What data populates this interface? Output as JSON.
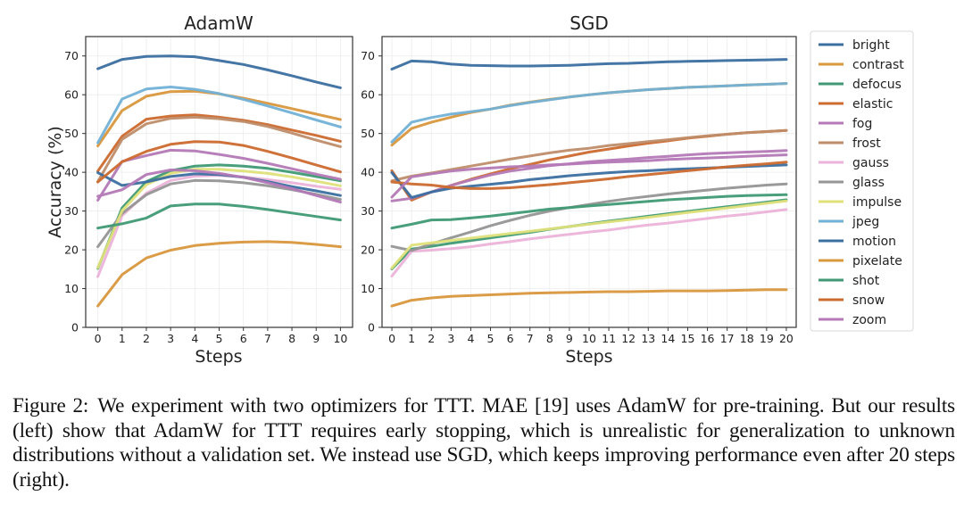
{
  "figure": {
    "caption_label": "Figure 2:",
    "caption_text": "We experiment with two optimizers for TTT. MAE [19] uses AdamW for pre-training. But our results (left) show that AdamW for TTT requires early stopping, which is unrealistic for generalization to unknown distributions without a validation set. We instead use SGD, which keeps improving performance even after 20 steps (right)."
  },
  "legend": {
    "placement": "right",
    "entries": [
      {
        "name": "bright",
        "color": "#3b6fa0"
      },
      {
        "name": "contrast",
        "color": "#d9973e"
      },
      {
        "name": "defocus",
        "color": "#3f9a74"
      },
      {
        "name": "elastic",
        "color": "#cc6a2f"
      },
      {
        "name": "fog",
        "color": "#b479b6"
      },
      {
        "name": "frost",
        "color": "#bf8d6a"
      },
      {
        "name": "gauss",
        "color": "#ebb3d9"
      },
      {
        "name": "glass",
        "color": "#959595"
      },
      {
        "name": "impulse",
        "color": "#dfe07a"
      },
      {
        "name": "jpeg",
        "color": "#72b1d6"
      },
      {
        "name": "motion",
        "color": "#3b6fa0"
      },
      {
        "name": "pixelate",
        "color": "#d9973e"
      },
      {
        "name": "shot",
        "color": "#3f9a74"
      },
      {
        "name": "snow",
        "color": "#cc6a2f"
      },
      {
        "name": "zoom",
        "color": "#b479b6"
      }
    ]
  },
  "chart_data": [
    {
      "type": "line",
      "title": "AdamW",
      "xlabel": "Steps",
      "ylabel": "Accuracy (%)",
      "xlim": [
        -0.5,
        10.5
      ],
      "ylim": [
        0,
        75
      ],
      "grid": true,
      "x": [
        0,
        1,
        2,
        3,
        4,
        5,
        6,
        7,
        8,
        9,
        10
      ],
      "xticks": [
        "0",
        "1",
        "2",
        "3",
        "4",
        "5",
        "6",
        "7",
        "8",
        "9",
        "10"
      ],
      "yticks": [
        "0",
        "10",
        "20",
        "30",
        "40",
        "50",
        "60",
        "70"
      ],
      "series": [
        {
          "name": "bright",
          "values": [
            66.7,
            69.1,
            69.9,
            70.0,
            69.8,
            68.8,
            67.8,
            66.4,
            64.9,
            63.3,
            61.8
          ]
        },
        {
          "name": "contrast",
          "values": [
            46.8,
            55.9,
            59.6,
            60.8,
            60.9,
            60.2,
            59.1,
            57.8,
            56.4,
            55.0,
            53.6
          ]
        },
        {
          "name": "defocus",
          "values": [
            15.2,
            30.8,
            37.6,
            40.4,
            41.6,
            41.9,
            41.6,
            41.0,
            40.0,
            38.9,
            37.8
          ]
        },
        {
          "name": "elastic",
          "values": [
            40.3,
            49.3,
            53.7,
            54.5,
            54.8,
            54.2,
            53.4,
            52.3,
            50.9,
            49.5,
            48.0
          ]
        },
        {
          "name": "fog",
          "values": [
            32.8,
            42.8,
            44.3,
            45.7,
            45.5,
            44.6,
            43.6,
            42.3,
            40.9,
            39.5,
            38.2
          ]
        },
        {
          "name": "frost",
          "values": [
            37.6,
            48.5,
            52.5,
            53.9,
            54.2,
            53.8,
            53.1,
            51.8,
            50.1,
            48.3,
            46.6
          ]
        },
        {
          "name": "gauss",
          "values": [
            13.1,
            28.8,
            34.6,
            37.9,
            39.0,
            39.2,
            38.8,
            38.1,
            37.3,
            36.4,
            35.6
          ]
        },
        {
          "name": "glass",
          "values": [
            20.8,
            29.4,
            34.2,
            37.0,
            37.9,
            37.8,
            37.3,
            36.5,
            35.5,
            34.3,
            33.0
          ]
        },
        {
          "name": "impulse",
          "values": [
            15.4,
            30.1,
            36.8,
            39.7,
            40.8,
            40.8,
            40.3,
            39.7,
            38.8,
            37.7,
            36.5
          ]
        },
        {
          "name": "jpeg",
          "values": [
            47.6,
            58.9,
            61.5,
            62.0,
            61.4,
            60.3,
            58.8,
            57.1,
            55.3,
            53.5,
            51.7
          ]
        },
        {
          "name": "motion",
          "values": [
            39.9,
            36.6,
            37.5,
            38.9,
            39.6,
            39.4,
            38.7,
            37.6,
            36.3,
            35.2,
            34.0
          ]
        },
        {
          "name": "pixelate",
          "values": [
            5.5,
            13.6,
            17.9,
            19.9,
            21.1,
            21.7,
            22.0,
            22.1,
            21.9,
            21.4,
            20.8
          ]
        },
        {
          "name": "shot",
          "values": [
            25.6,
            26.7,
            28.2,
            31.3,
            31.8,
            31.8,
            31.2,
            30.4,
            29.5,
            28.6,
            27.7
          ]
        },
        {
          "name": "snow",
          "values": [
            37.5,
            42.7,
            45.4,
            47.2,
            47.9,
            47.8,
            46.9,
            45.4,
            43.7,
            41.9,
            40.1
          ]
        },
        {
          "name": "zoom",
          "values": [
            33.8,
            35.5,
            39.4,
            40.6,
            40.4,
            39.7,
            38.7,
            37.3,
            35.8,
            34.0,
            32.3
          ]
        }
      ]
    },
    {
      "type": "line",
      "title": "SGD",
      "xlabel": "Steps",
      "ylabel": "",
      "xlim": [
        -0.5,
        20.5
      ],
      "ylim": [
        0,
        75
      ],
      "grid": true,
      "x": [
        0,
        1,
        2,
        3,
        4,
        5,
        6,
        7,
        8,
        9,
        10,
        11,
        12,
        13,
        14,
        15,
        16,
        17,
        18,
        19,
        20
      ],
      "xticks": [
        "0",
        "1",
        "2",
        "3",
        "4",
        "5",
        "6",
        "7",
        "8",
        "9",
        "10",
        "11",
        "12",
        "13",
        "14",
        "15",
        "16",
        "17",
        "18",
        "19",
        "20"
      ],
      "yticks": [
        "0",
        "10",
        "20",
        "30",
        "40",
        "50",
        "60",
        "70"
      ],
      "series": [
        {
          "name": "bright",
          "values": [
            66.6,
            68.7,
            68.5,
            67.9,
            67.6,
            67.5,
            67.4,
            67.4,
            67.5,
            67.6,
            67.8,
            68.0,
            68.1,
            68.3,
            68.5,
            68.6,
            68.7,
            68.8,
            68.9,
            69.0,
            69.1
          ]
        },
        {
          "name": "contrast",
          "values": [
            47.0,
            51.3,
            52.9,
            54.2,
            55.4,
            56.3,
            57.3,
            58.1,
            58.8,
            59.4,
            60.0,
            60.5,
            60.9,
            61.3,
            61.6,
            61.9,
            62.1,
            62.3,
            62.5,
            62.7,
            62.9
          ]
        },
        {
          "name": "defocus",
          "values": [
            15.1,
            20.2,
            20.9,
            21.7,
            22.4,
            23.1,
            23.8,
            24.5,
            25.3,
            26.0,
            26.7,
            27.4,
            28.0,
            28.7,
            29.3,
            29.9,
            30.5,
            31.1,
            31.7,
            32.3,
            32.9
          ]
        },
        {
          "name": "elastic",
          "values": [
            40.4,
            32.8,
            34.9,
            36.6,
            38.2,
            39.6,
            40.9,
            42.0,
            43.2,
            44.2,
            45.2,
            46.0,
            46.8,
            47.5,
            48.1,
            48.8,
            49.3,
            49.8,
            50.2,
            50.5,
            50.8
          ]
        },
        {
          "name": "fog",
          "values": [
            32.6,
            33.3,
            34.9,
            36.6,
            38.0,
            39.3,
            40.3,
            41.0,
            41.7,
            42.2,
            42.7,
            43.1,
            43.4,
            43.8,
            44.1,
            44.5,
            44.8,
            45.0,
            45.2,
            45.4,
            45.6
          ]
        },
        {
          "name": "frost",
          "values": [
            37.8,
            39.0,
            39.8,
            40.7,
            41.6,
            42.5,
            43.4,
            44.2,
            45.0,
            45.7,
            46.2,
            46.9,
            47.4,
            47.9,
            48.4,
            48.9,
            49.4,
            49.8,
            50.2,
            50.5,
            50.8
          ]
        },
        {
          "name": "gauss",
          "values": [
            13.2,
            19.6,
            19.9,
            20.3,
            20.8,
            21.5,
            22.1,
            22.8,
            23.4,
            24.0,
            24.6,
            25.1,
            25.8,
            26.4,
            26.9,
            27.5,
            28.1,
            28.7,
            29.2,
            29.8,
            30.4
          ]
        },
        {
          "name": "glass",
          "values": [
            20.9,
            19.8,
            21.5,
            23.1,
            24.6,
            26.2,
            27.6,
            28.9,
            30.0,
            30.9,
            31.7,
            32.5,
            33.2,
            33.8,
            34.4,
            34.9,
            35.4,
            35.9,
            36.3,
            36.7,
            37.0
          ]
        },
        {
          "name": "impulse",
          "values": [
            15.3,
            21.2,
            21.8,
            22.4,
            23.0,
            23.6,
            24.2,
            24.8,
            25.4,
            26.0,
            26.6,
            27.2,
            27.8,
            28.4,
            29.0,
            29.6,
            30.2,
            30.8,
            31.4,
            32.0,
            32.6
          ]
        },
        {
          "name": "jpeg",
          "values": [
            47.8,
            52.9,
            54.1,
            55.0,
            55.6,
            56.3,
            57.2,
            58.0,
            58.7,
            59.4,
            60.0,
            60.5,
            60.9,
            61.3,
            61.6,
            61.9,
            62.1,
            62.3,
            62.5,
            62.7,
            62.9
          ]
        },
        {
          "name": "motion",
          "values": [
            39.9,
            33.5,
            34.9,
            35.9,
            36.4,
            36.9,
            37.4,
            38.1,
            38.6,
            39.1,
            39.5,
            39.9,
            40.2,
            40.4,
            40.7,
            40.9,
            41.1,
            41.3,
            41.5,
            41.7,
            41.9
          ]
        },
        {
          "name": "pixelate",
          "values": [
            5.5,
            7.0,
            7.6,
            8.0,
            8.2,
            8.4,
            8.6,
            8.8,
            8.9,
            9.0,
            9.1,
            9.2,
            9.2,
            9.3,
            9.4,
            9.4,
            9.4,
            9.5,
            9.6,
            9.7,
            9.7
          ]
        },
        {
          "name": "shot",
          "values": [
            25.6,
            26.6,
            27.7,
            27.8,
            28.2,
            28.7,
            29.3,
            29.9,
            30.5,
            30.9,
            31.3,
            31.7,
            32.1,
            32.5,
            32.9,
            33.2,
            33.5,
            33.8,
            34.0,
            34.1,
            34.2
          ]
        },
        {
          "name": "snow",
          "values": [
            37.5,
            37.0,
            36.7,
            36.1,
            35.8,
            35.8,
            36.0,
            36.4,
            36.8,
            37.3,
            37.8,
            38.3,
            38.9,
            39.4,
            39.9,
            40.4,
            40.9,
            41.4,
            41.8,
            42.2,
            42.6
          ]
        },
        {
          "name": "zoom",
          "values": [
            33.6,
            38.8,
            39.6,
            40.3,
            40.8,
            41.1,
            41.4,
            41.6,
            41.9,
            42.1,
            42.4,
            42.6,
            42.8,
            43.0,
            43.3,
            43.5,
            43.7,
            43.9,
            44.1,
            44.3,
            44.5
          ]
        }
      ]
    }
  ]
}
